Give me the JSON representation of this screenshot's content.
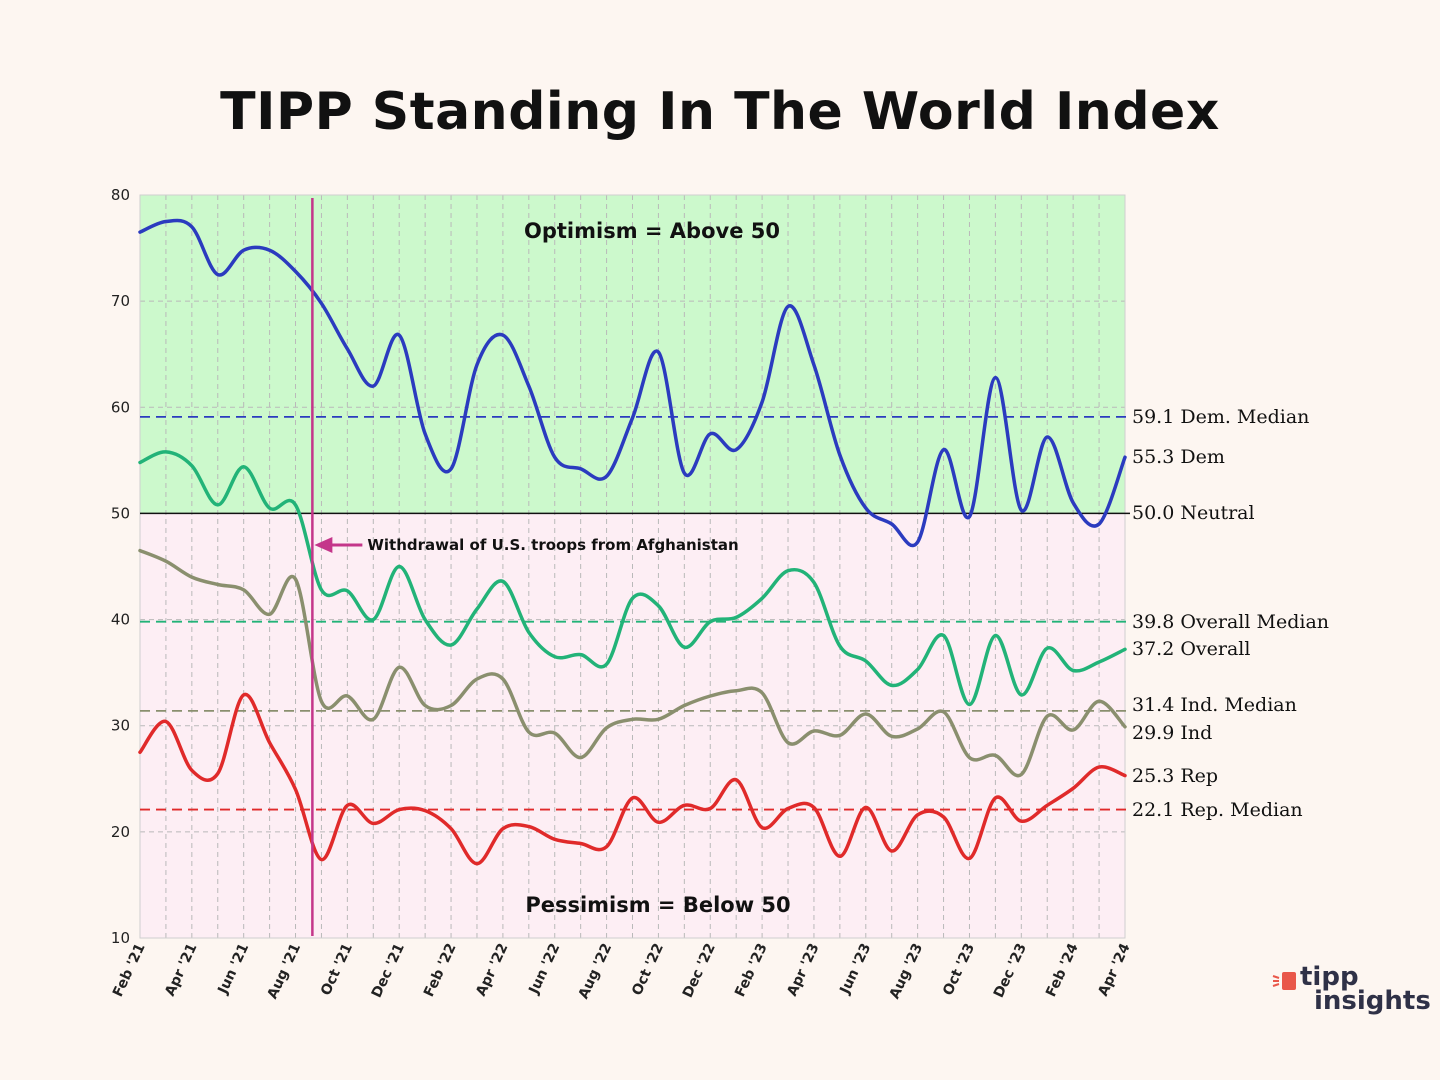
{
  "chart_data": {
    "type": "line",
    "title": "TIPP Standing In The World Index",
    "ylim": [
      10,
      80
    ],
    "yticks": [
      10,
      20,
      30,
      40,
      50,
      60,
      70,
      80
    ],
    "grid": true,
    "categories": [
      "Feb '21",
      "Mar '21",
      "Apr '21",
      "May '21",
      "Jun '21",
      "Jul '21",
      "Aug '21",
      "Sep '21",
      "Oct '21",
      "Nov '21",
      "Dec '21",
      "Jan '22",
      "Feb '22",
      "Mar '22",
      "Apr '22",
      "May '22",
      "Jun '22",
      "Jul '22",
      "Aug '22",
      "Sep '22",
      "Oct '22",
      "Nov '22",
      "Dec '22",
      "Jan '23",
      "Feb '23",
      "Mar '23",
      "Apr '23",
      "May '23",
      "Jun '23",
      "Jul '23",
      "Aug '23",
      "Sep '23",
      "Oct '23",
      "Nov '23",
      "Dec '23",
      "Jan '24",
      "Feb '24",
      "Mar '24",
      "Apr '24"
    ],
    "x_tick_labels": [
      "Feb '21",
      "Apr '21",
      "Jun '21",
      "Aug '21",
      "Oct '21",
      "Dec '21",
      "Feb '22",
      "Apr '22",
      "Jun '22",
      "Aug '22",
      "Oct '22",
      "Dec '22",
      "Feb '23",
      "Apr '23",
      "Jun '23",
      "Aug '23",
      "Oct '23",
      "Dec '23",
      "Feb '24",
      "Apr '24"
    ],
    "series": [
      {
        "name": "Dem",
        "color": "#2b3bbf",
        "values": [
          76.5,
          77.5,
          77.0,
          72.5,
          74.8,
          74.8,
          72.8,
          69.8,
          65.5,
          62.0,
          66.8,
          57.5,
          54.2,
          64.0,
          66.8,
          62.0,
          55.3,
          54.2,
          53.5,
          59.0,
          65.2,
          53.8,
          57.5,
          56.0,
          60.5,
          69.5,
          64.0,
          55.5,
          50.5,
          49.0,
          47.3,
          56.0,
          49.7,
          62.8,
          50.3,
          57.2,
          51.0,
          49.0,
          55.3
        ]
      },
      {
        "name": "Overall",
        "color": "#22b378",
        "values": [
          54.8,
          55.8,
          54.5,
          50.8,
          54.4,
          50.5,
          50.8,
          42.8,
          42.7,
          40.0,
          45.0,
          40.0,
          37.6,
          41.0,
          43.6,
          38.8,
          36.5,
          36.7,
          35.8,
          42.0,
          41.3,
          37.4,
          39.8,
          40.2,
          42.0,
          44.6,
          43.5,
          37.5,
          36.1,
          33.8,
          35.3,
          38.5,
          32.0,
          38.5,
          32.9,
          37.3,
          35.2,
          36.0,
          37.2
        ]
      },
      {
        "name": "Ind",
        "color": "#8a8f6e",
        "values": [
          46.5,
          45.5,
          44.0,
          43.3,
          42.8,
          40.5,
          43.8,
          32.3,
          32.8,
          30.6,
          35.5,
          31.9,
          31.9,
          34.4,
          34.4,
          29.4,
          29.3,
          27.0,
          29.8,
          30.6,
          30.6,
          31.9,
          32.8,
          33.3,
          33.1,
          28.4,
          29.5,
          29.1,
          31.1,
          29.0,
          29.7,
          31.3,
          27.0,
          27.2,
          25.4,
          30.9,
          29.6,
          32.3,
          29.9
        ]
      },
      {
        "name": "Rep",
        "color": "#e02a2a",
        "values": [
          27.5,
          30.4,
          25.8,
          25.5,
          32.9,
          28.4,
          24.0,
          17.4,
          22.5,
          20.8,
          22.1,
          22.0,
          20.3,
          17.0,
          20.3,
          20.5,
          19.3,
          18.9,
          18.6,
          23.2,
          20.9,
          22.5,
          22.2,
          24.9,
          20.4,
          22.2,
          22.3,
          17.7,
          22.3,
          18.2,
          21.6,
          21.4,
          17.5,
          23.2,
          21.0,
          22.5,
          24.1,
          26.1,
          25.3
        ]
      }
    ],
    "reference_lines": [
      {
        "name": "Dem. Median",
        "value": 59.1,
        "color": "#2b3bbf",
        "label": "59.1 Dem. Median"
      },
      {
        "name": "Overall Median",
        "value": 39.8,
        "color": "#22b378",
        "label": "39.8 Overall Median"
      },
      {
        "name": "Ind. Median",
        "value": 31.4,
        "color": "#8a8f6e",
        "label": "31.4 Ind. Median"
      },
      {
        "name": "Rep. Median",
        "value": 22.1,
        "color": "#e02a2a",
        "label": "22.1 Rep. Median"
      },
      {
        "name": "Neutral",
        "value": 50.0,
        "color": "#111111",
        "label": "50.0 Neutral"
      }
    ],
    "end_labels": [
      {
        "series": "Dem",
        "label": "55.3 Dem"
      },
      {
        "series": "Overall",
        "label": "37.2 Overall"
      },
      {
        "series": "Ind",
        "label": "29.9 Ind"
      },
      {
        "series": "Rep",
        "label": "25.3 Rep"
      }
    ],
    "zones": {
      "above": {
        "label": "Optimism = Above 50",
        "color": "#ccf9cc"
      },
      "below": {
        "label": "Pessimism = Below 50",
        "color": "#fdeef4"
      }
    },
    "event_marker": {
      "category": "Sep '21",
      "label": "Withdrawal of U.S. troops from Afghanistan",
      "color": "#c4368a"
    }
  },
  "logo": {
    "line1": "tipp",
    "line2": "insights"
  }
}
